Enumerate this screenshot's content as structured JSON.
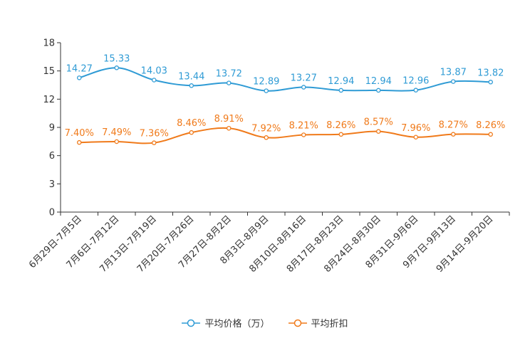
{
  "chart_data": {
    "type": "line",
    "categories": [
      "6月29日-7月5日",
      "7月6日-7月12日",
      "7月13日-7月19日",
      "7月20日-7月26日",
      "7月27日-8月2日",
      "8月3日-8月9日",
      "8月10日-8月16日",
      "8月17日-8月23日",
      "8月24日-8月30日",
      "8月31日-9月6日",
      "9月7日-9月13日",
      "9月14日-9月20日"
    ],
    "series": [
      {
        "name": "平均价格（万）",
        "color": "#2f9bd5",
        "values": [
          14.27,
          15.33,
          14.03,
          13.44,
          13.72,
          12.89,
          13.27,
          12.94,
          12.94,
          12.96,
          13.87,
          13.82
        ],
        "labels": [
          "14.27",
          "15.33",
          "14.03",
          "13.44",
          "13.72",
          "12.89",
          "13.27",
          "12.94",
          "12.94",
          "12.96",
          "13.87",
          "13.82"
        ]
      },
      {
        "name": "平均折扣",
        "color": "#f07a1a",
        "values": [
          7.4,
          7.49,
          7.36,
          8.46,
          8.91,
          7.92,
          8.21,
          8.26,
          8.57,
          7.96,
          8.27,
          8.26
        ],
        "labels": [
          "7.40%",
          "7.49%",
          "7.36%",
          "8.46%",
          "8.91%",
          "7.92%",
          "8.21%",
          "8.26%",
          "8.57%",
          "7.96%",
          "8.27%",
          "8.26%"
        ]
      }
    ],
    "ylim": [
      0,
      18
    ],
    "yticks": [
      "0",
      "3",
      "6",
      "9",
      "12",
      "15",
      "18"
    ],
    "legend_position": "bottom-center"
  }
}
